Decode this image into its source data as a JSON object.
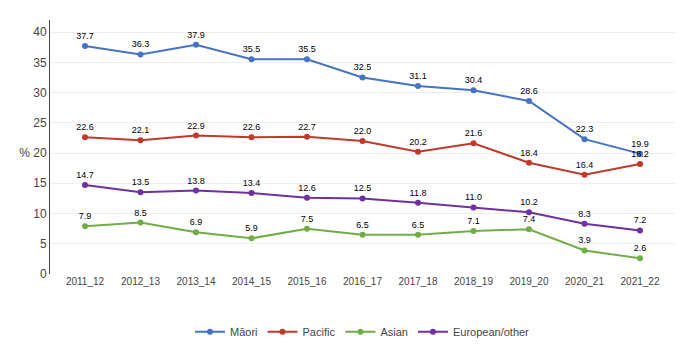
{
  "chart_data": {
    "type": "line",
    "categories": [
      "2011_12",
      "2012_13",
      "2013_14",
      "2014_15",
      "2015_16",
      "2016_17",
      "2017_18",
      "2018_19",
      "2019_20",
      "2020_21",
      "2021_22"
    ],
    "series": [
      {
        "name": "Māori",
        "color": "#4472C4",
        "values": [
          37.7,
          36.3,
          37.9,
          35.5,
          35.5,
          32.5,
          31.1,
          30.4,
          28.6,
          22.3,
          19.9
        ],
        "value_labels": [
          "37.7",
          "36.3",
          "37.9",
          "35.5",
          "35.5",
          "32.5",
          "31.1",
          "30.4",
          "28.6",
          "22.3",
          "19.9"
        ]
      },
      {
        "name": "Pacific",
        "color": "#C0392B",
        "values": [
          22.6,
          22.1,
          22.9,
          22.6,
          22.7,
          22.0,
          20.2,
          21.6,
          18.4,
          16.4,
          18.2
        ],
        "value_labels": [
          "22.6",
          "22.1",
          "22.9",
          "22.6",
          "22.7",
          "22.0",
          "20.2",
          "21.6",
          "18.4",
          "16.4",
          "18.2"
        ]
      },
      {
        "name": "Asian",
        "color": "#70AD47",
        "values": [
          7.9,
          8.5,
          6.9,
          5.9,
          7.5,
          6.5,
          6.5,
          7.1,
          7.4,
          3.9,
          2.6
        ],
        "value_labels": [
          "7.9",
          "8.5",
          "6.9",
          "5.9",
          "7.5",
          "6.5",
          "6.5",
          "7.1",
          "7.4",
          "3.9",
          "2.6"
        ]
      },
      {
        "name": "European/other",
        "color": "#7030A0",
        "values": [
          14.7,
          13.5,
          13.8,
          13.4,
          12.6,
          12.5,
          11.8,
          11.0,
          10.2,
          8.3,
          7.2
        ],
        "value_labels": [
          "14.7",
          "13.5",
          "13.8",
          "13.4",
          "12.6",
          "12.5",
          "11.8",
          "11.0",
          "10.2",
          "8.3",
          "7.2"
        ]
      }
    ],
    "ylim": [
      0,
      42
    ],
    "yticks": [
      0,
      5,
      10,
      15,
      {
        "value": 20,
        "label": "% 20"
      },
      25,
      30,
      35,
      40
    ],
    "grid": true,
    "legend": "bottom",
    "data_labels": true,
    "marker": "circle"
  }
}
